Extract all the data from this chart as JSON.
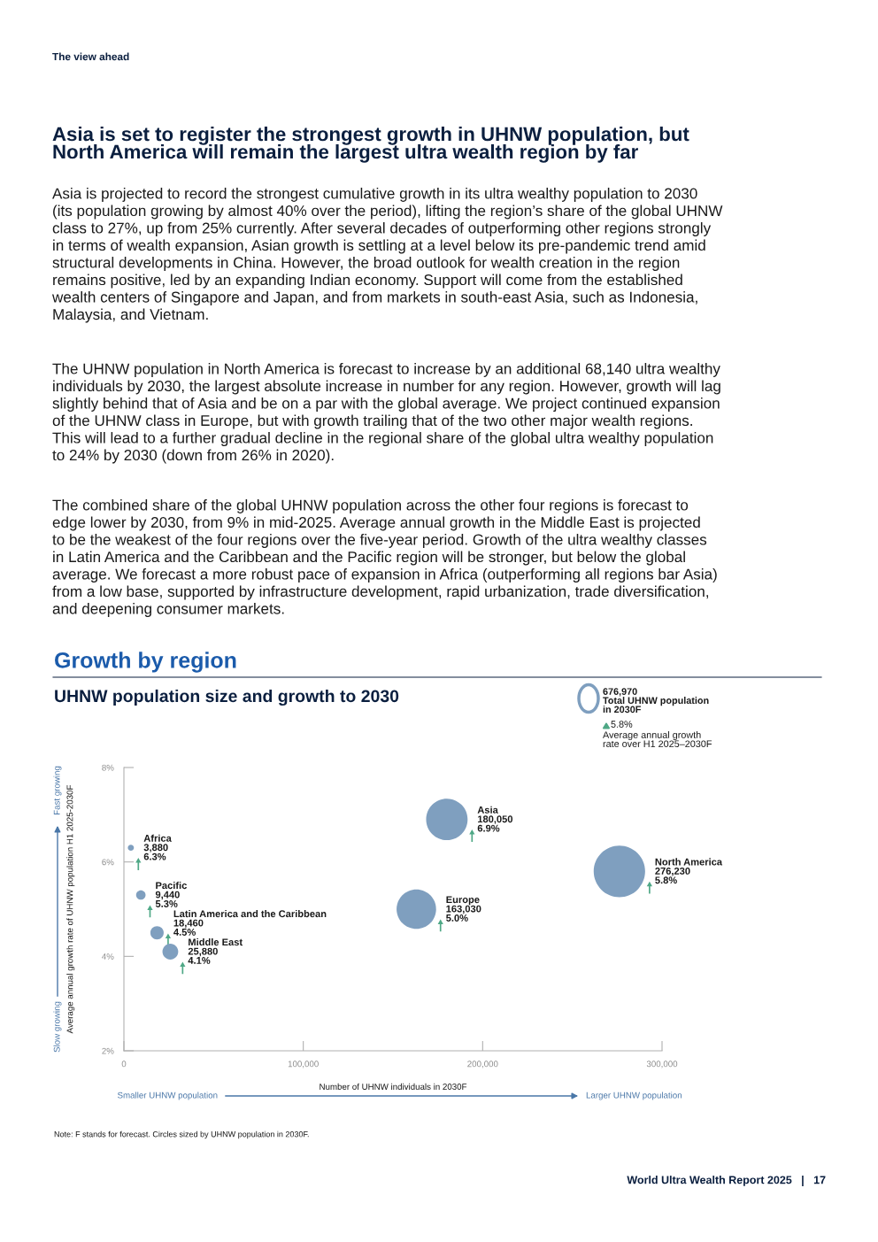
{
  "chart_data": {
    "type": "bubble",
    "title": "UHNW population size and growth to 2030",
    "xlabel": "Number of UHNW individuals in 2030F",
    "ylabel": "Average annual growth rate of UHNW population H1 2025-2030F",
    "x": [
      3880,
      9440,
      18460,
      25880,
      163030,
      180050,
      276230
    ],
    "values": [
      6.3,
      5.3,
      4.5,
      4.1,
      5.0,
      6.9,
      5.8
    ],
    "sizes": [
      0.014,
      0.034,
      0.067,
      0.094,
      0.59,
      0.65,
      1
    ],
    "color": "#7f9fbf",
    "xlim": [
      0,
      300000
    ],
    "xticks": [
      0,
      {
        "value": 100000,
        "label": "100,000"
      },
      {
        "value": 200000,
        "label": "200,000"
      },
      {
        "value": 300000,
        "label": "300,000"
      }
    ],
    "ylim": [
      2,
      8
    ],
    "yticks": [
      {
        "value": 2,
        "label": "2%"
      },
      {
        "value": 4,
        "label": "4%"
      },
      {
        "value": 6,
        "label": "6%"
      },
      {
        "value": 8,
        "label": "8%"
      }
    ],
    "annotations": [
      "The view ahead",
      "Asia is set to register the strongest growth in UHNW population, but\nNorth America will remain the largest ultra wealth region by far",
      "Asia is projected to record the strongest cumulative growth in its ultra wealthy population to 2030\n(its population growing by almost 40% over the period), lifting the region’s share of the global UHNW\nclass to 27%, up from 25% currently. After several decades of outperforming other regions strongly\nin terms of wealth expansion, Asian growth is settling at a level below its pre-pandemic trend amid\nstructural developments in China. However, the broad outlook for wealth creation in the region\nremains positive, led by an expanding Indian economy. Support will come from the established\nwealth centers of Singapore and Japan, and from markets in south-east Asia, such as Indonesia,\nMalaysia, and Vietnam.",
      "The UHNW population in North America is forecast to increase by an additional 68,140 ultra wealthy\nindividuals by 2030, the largest absolute increase in number for any region. However, growth will lag\nslightly behind that of Asia and be on a par with the global average. We project continued expansion\nof the UHNW class in Europe, but with growth trailing that of the two other major wealth regions.\nThis will lead to a further gradual decline in the regional share of the global ultra wealthy population\nto 24% by 2030 (down from 26% in 2020).",
      "The combined share of the global UHNW population across the other four regions is forecast to\nedge lower by 2030, from 9% in mid-2025. Average annual growth in the Middle East is projected\nto be the weakest of the four regions over the five-year period. Growth of the ultra wealthy classes\nin Latin America and the Caribbean and the Pacific region will be stronger, but below the global\naverage. We forecast a more robust pace of expansion in Africa (outperforming all regions bar Asia)\nfrom a low base, supported by infrastructure development, rapid urbanization, trade diversification,\nand deepening consumer markets.",
      "Growth by region",
      "676,970\nTotal UHNW population\nin 2030F",
      "5.8%",
      "Average annual growth\nrate over H1 2025–2030F",
      "Fast growing",
      "Slow growing",
      "Smaller UHNW population",
      "Larger UHNW population",
      "Note: F stands for forecast. Circles sized by UHNW population in 2030F.",
      "World Ultra Wealth Report 2025   |   17"
    ],
    "value_labels": [
      "Africa\n3,880\n6.3%",
      "Pacific\n9,440\n5.3%",
      "Latin America and the Caribbean\n18,460\n4.5%",
      "Middle East\n25,880\n4.1%",
      "Europe\n163,030\n5.0%",
      "Asia\n180,050\n6.9%",
      "North America\n276,230\n5.8%"
    ]
  }
}
